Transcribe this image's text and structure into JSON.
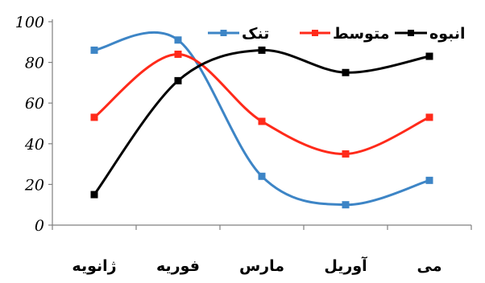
{
  "chart_data": {
    "type": "line",
    "title": "",
    "xlabel": "",
    "ylabel": "",
    "categories": [
      "ژانویه",
      "فوریه",
      "مارس",
      "آوریل",
      "می"
    ],
    "ylim": [
      0,
      100
    ],
    "yticks": [
      "0",
      "20",
      "40",
      "60",
      "80",
      "100"
    ],
    "grid": false,
    "legend_position": "top-right",
    "smooth": true,
    "series": [
      {
        "name": "تنک",
        "color": "#3d85c6",
        "marker": "square",
        "values": [
          86,
          91,
          24,
          10,
          22
        ]
      },
      {
        "name": "متوسط",
        "color": "#ff2a1a",
        "marker": "square",
        "values": [
          53,
          84,
          51,
          35,
          53
        ]
      },
      {
        "name": "انبوه",
        "color": "#000000",
        "marker": "square",
        "values": [
          15,
          71,
          86,
          75,
          83
        ]
      }
    ]
  }
}
